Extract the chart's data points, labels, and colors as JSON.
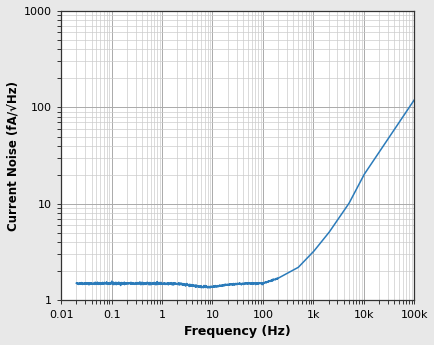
{
  "xmin": 0.01,
  "xmax": 100000,
  "ymin": 1,
  "ymax": 1000,
  "line_color": "#2b7bba",
  "line_width": 1.1,
  "xlabel": "Frequency (Hz)",
  "ylabel": "Current Noise (fA/√Hz)",
  "plot_bg_color": "#ffffff",
  "fig_bg_color": "#e8e8e8",
  "grid_major_color": "#aaaaaa",
  "grid_minor_color": "#cccccc",
  "xtick_labels": [
    "0.01",
    "0.1",
    "1",
    "10",
    "100",
    "1k",
    "10k",
    "100k"
  ],
  "xtick_values": [
    0.01,
    0.1,
    1,
    10,
    100,
    1000,
    10000,
    100000
  ],
  "ytick_labels": [
    "1",
    "10",
    "100",
    "1000"
  ],
  "ytick_values": [
    1,
    10,
    100,
    1000
  ],
  "curve_anchor_x": [
    0.02,
    0.1,
    1,
    10,
    100,
    200,
    500,
    1000,
    2000,
    5000,
    10000,
    50000,
    100000
  ],
  "curve_anchor_y": [
    1.5,
    1.5,
    1.5,
    1.5,
    1.5,
    1.7,
    2.2,
    3.2,
    5.0,
    10.0,
    20.0,
    70.0,
    120.0
  ]
}
